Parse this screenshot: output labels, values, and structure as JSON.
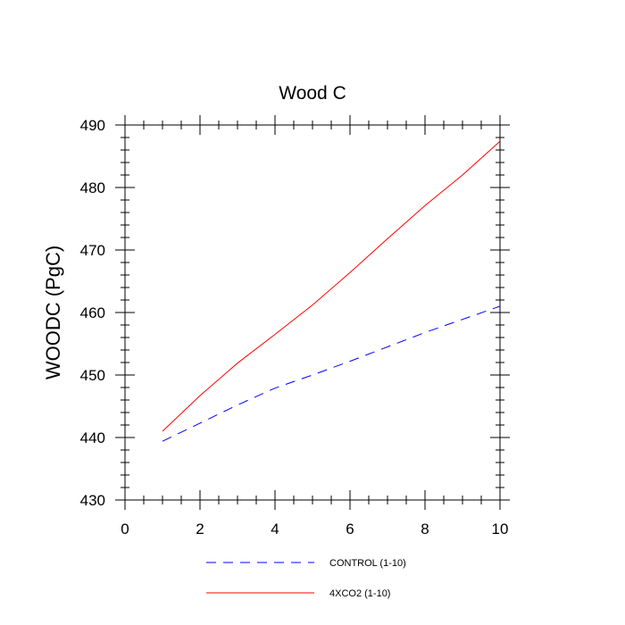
{
  "chart_data": {
    "type": "line",
    "title": "Wood C",
    "xlabel": "",
    "ylabel": "WOODC  (PgC)",
    "xlim": [
      0,
      10
    ],
    "ylim": [
      430,
      490
    ],
    "xticks": [
      0,
      2,
      4,
      6,
      8,
      10
    ],
    "yticks": [
      430,
      440,
      450,
      460,
      470,
      480,
      490
    ],
    "grid": false,
    "legend_position": "bottom",
    "series": [
      {
        "name": "CONTROL (1-10)",
        "color": "#0000ff",
        "dash": "dashed",
        "x": [
          1,
          2,
          3,
          4,
          5,
          6,
          7,
          8,
          9,
          10
        ],
        "y": [
          439.4,
          442.3,
          445.2,
          447.9,
          450.0,
          452.2,
          454.5,
          456.8,
          458.9,
          461.0
        ]
      },
      {
        "name": "4XCO2 (1-10)",
        "color": "#ff0000",
        "dash": "solid",
        "x": [
          1,
          2,
          3,
          4,
          5,
          6,
          7,
          8,
          9,
          10
        ],
        "y": [
          441.0,
          446.7,
          451.9,
          456.5,
          461.2,
          466.4,
          471.8,
          477.1,
          482.0,
          487.4
        ]
      }
    ]
  }
}
